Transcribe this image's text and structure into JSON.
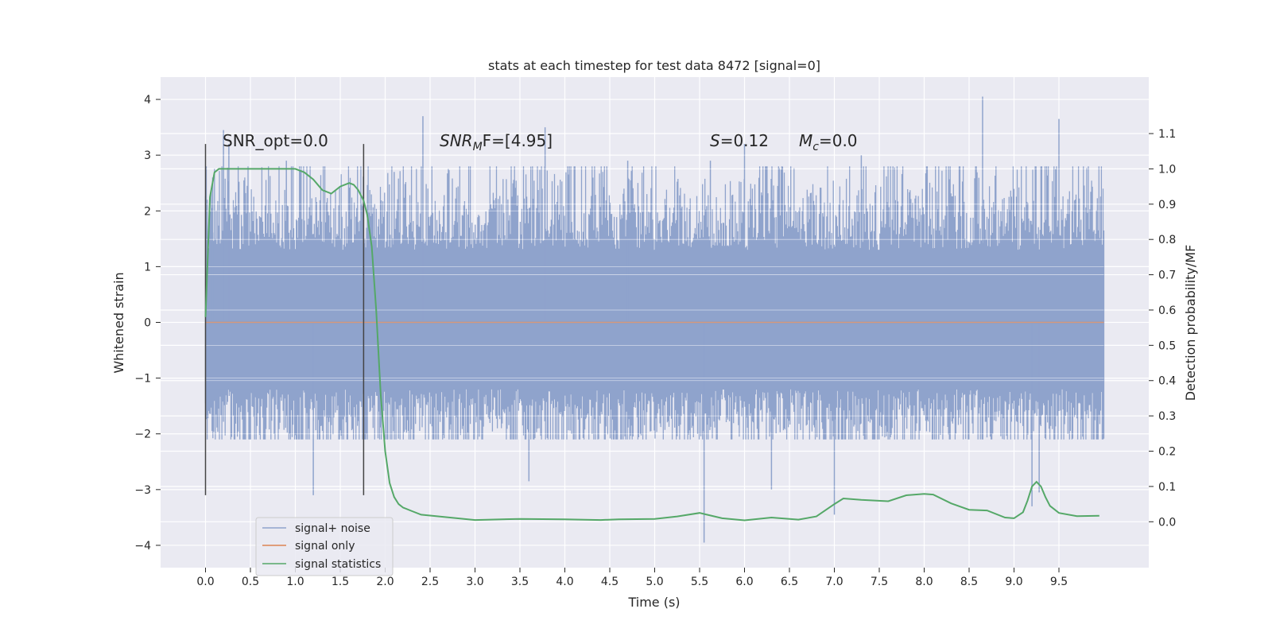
{
  "chart_data": {
    "type": "line",
    "title": "stats at each timestep for test data 8472 [signal=0]",
    "xlabel": "Time (s)",
    "ylabel": "Whitened strain",
    "y2label": "Detection probability/MF",
    "xlim": [
      -0.5,
      10.5
    ],
    "ylim": [
      -4.4,
      4.4
    ],
    "y2lim": [
      -0.13,
      1.26
    ],
    "xticks": [
      "0.0",
      "0.5",
      "1.0",
      "1.5",
      "2.0",
      "2.5",
      "3.0",
      "3.5",
      "4.0",
      "4.5",
      "5.0",
      "5.5",
      "6.0",
      "6.5",
      "7.0",
      "7.5",
      "8.0",
      "8.5",
      "9.0",
      "9.5"
    ],
    "yticks": [
      "4",
      "3",
      "2",
      "1",
      "0",
      "−1",
      "−2",
      "−3",
      "−4"
    ],
    "y2ticks": [
      "1.1",
      "1.0",
      "0.9",
      "0.8",
      "0.7",
      "0.6",
      "0.5",
      "0.4",
      "0.3",
      "0.2",
      "0.1",
      "0.0"
    ],
    "grid": true,
    "legend_position": "lower-left",
    "annotations": {
      "snr_opt": "SNR_opt=0.0",
      "snr_mf_sym": "SNR",
      "snr_mf_sub": "M",
      "snr_mf_rest": "F=[4.95]",
      "s_sym": "S",
      "s_val": "=0.12",
      "mc_sym": "M",
      "mc_sub": "c",
      "mc_val": "=0.0"
    },
    "vlines": [
      {
        "x": 0.0,
        "ymin": -3.1,
        "ymax": 3.2
      },
      {
        "x": 1.76,
        "ymin": -3.1,
        "ymax": 3.2
      }
    ],
    "series": [
      {
        "name": "signal+ noise",
        "color": "#8fa3cc",
        "kind": "noise",
        "x_range": [
          0.0,
          10.0
        ],
        "typical_envelope": [
          -1.6,
          2.4
        ],
        "spikes": [
          {
            "x": 0.08,
            "y": 2.6
          },
          {
            "x": 0.2,
            "y": 3.45
          },
          {
            "x": 0.26,
            "y": 3.2
          },
          {
            "x": 0.9,
            "y": 2.9
          },
          {
            "x": 1.2,
            "y": -3.1
          },
          {
            "x": 2.42,
            "y": 3.7
          },
          {
            "x": 3.78,
            "y": 3.5
          },
          {
            "x": 3.6,
            "y": -2.85
          },
          {
            "x": 5.55,
            "y": -3.95
          },
          {
            "x": 5.62,
            "y": 2.9
          },
          {
            "x": 6.0,
            "y": 3.2
          },
          {
            "x": 6.3,
            "y": -3.0
          },
          {
            "x": 7.0,
            "y": -3.45
          },
          {
            "x": 7.3,
            "y": 3.0
          },
          {
            "x": 8.65,
            "y": 4.05
          },
          {
            "x": 9.2,
            "y": -3.3
          },
          {
            "x": 9.5,
            "y": 3.65
          },
          {
            "x": 9.28,
            "y": -3.05
          },
          {
            "x": 4.7,
            "y": 2.9
          },
          {
            "x": 2.1,
            "y": 2.7
          }
        ]
      },
      {
        "name": "signal only",
        "color": "#dd8452",
        "kind": "line",
        "x": [
          0.0,
          10.0
        ],
        "y": [
          0.0,
          0.0
        ]
      },
      {
        "name": "signal statistics",
        "color": "#55a868",
        "kind": "line",
        "axis": "right",
        "x": [
          0.0,
          0.05,
          0.1,
          0.15,
          0.2,
          0.3,
          0.5,
          0.8,
          1.0,
          1.1,
          1.2,
          1.3,
          1.4,
          1.5,
          1.6,
          1.65,
          1.7,
          1.76,
          1.8,
          1.85,
          1.9,
          1.95,
          2.0,
          2.05,
          2.1,
          2.15,
          2.2,
          2.3,
          2.4,
          2.6,
          3.0,
          3.5,
          4.0,
          4.4,
          4.6,
          5.0,
          5.25,
          5.5,
          5.75,
          6.0,
          6.3,
          6.6,
          6.8,
          7.0,
          7.1,
          7.3,
          7.6,
          7.8,
          8.0,
          8.1,
          8.3,
          8.5,
          8.7,
          8.9,
          9.0,
          9.1,
          9.15,
          9.2,
          9.25,
          9.3,
          9.35,
          9.4,
          9.5,
          9.7,
          9.95
        ],
        "y": [
          0.58,
          0.92,
          0.99,
          1.0,
          1.0,
          1.0,
          1.0,
          1.0,
          1.0,
          0.99,
          0.97,
          0.94,
          0.93,
          0.95,
          0.96,
          0.955,
          0.94,
          0.91,
          0.87,
          0.78,
          0.6,
          0.36,
          0.2,
          0.11,
          0.07,
          0.05,
          0.04,
          0.03,
          0.02,
          0.015,
          0.005,
          0.008,
          0.007,
          0.005,
          0.007,
          0.008,
          0.015,
          0.025,
          0.01,
          0.004,
          0.012,
          0.006,
          0.015,
          0.05,
          0.066,
          0.062,
          0.058,
          0.075,
          0.079,
          0.077,
          0.052,
          0.034,
          0.032,
          0.012,
          0.01,
          0.027,
          0.06,
          0.1,
          0.113,
          0.1,
          0.07,
          0.045,
          0.025,
          0.016,
          0.017
        ]
      }
    ]
  }
}
